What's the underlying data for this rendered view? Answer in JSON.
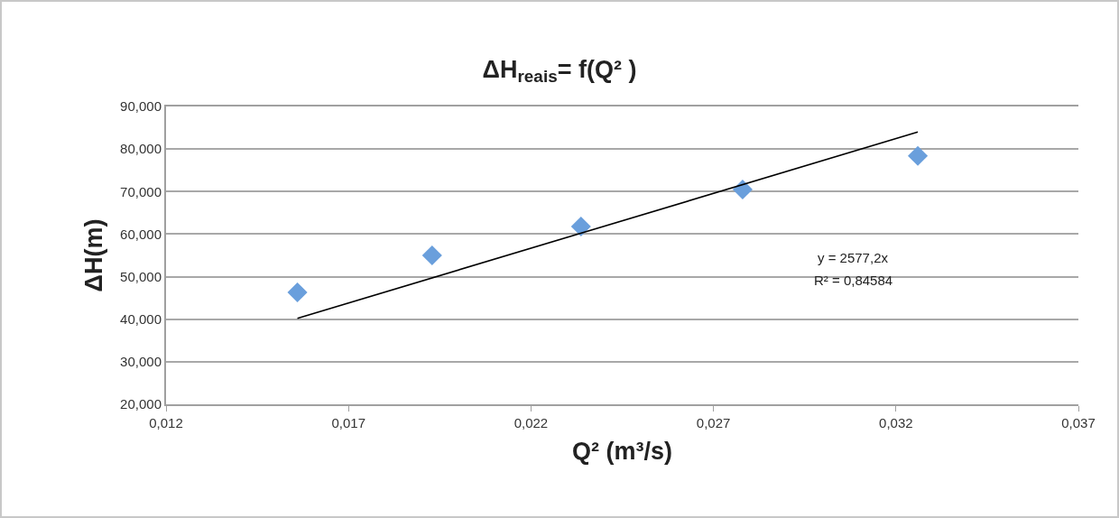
{
  "chart_data": {
    "type": "scatter",
    "title": "ΔH$_{reais}$= f(Q² )",
    "xlabel": "Q² (m³/s)",
    "ylabel": "ΔH(m)",
    "annotations": [
      "y = 2577,2x",
      "R² = 0,84584"
    ],
    "series": [
      {
        "color": "#6a9fdc",
        "marker": "diamond",
        "x": [
          0.0156,
          0.01929,
          0.02337,
          0.0278,
          0.0326
        ],
        "values": [
          46.3,
          55.0,
          61.8,
          70.5,
          78.4
        ]
      },
      {
        "type": "line",
        "color": "#000000",
        "marker": "none",
        "line_style": "solid",
        "x": [
          0.0156,
          0.0326
        ],
        "values": [
          40.2,
          84.0
        ]
      }
    ],
    "xlim": [
      0.012,
      0.037
    ],
    "xticks": [
      {
        "value": 0.012,
        "label": "0,012"
      },
      {
        "value": 0.017,
        "label": "0,017"
      },
      {
        "value": 0.022,
        "label": "0,022"
      },
      {
        "value": 0.027,
        "label": "0,027"
      },
      {
        "value": 0.032,
        "label": "0,032"
      },
      {
        "value": 0.037,
        "label": "0,037"
      }
    ],
    "ylim": [
      20,
      90
    ],
    "yticks": [
      {
        "value": 20,
        "label": "20,000"
      },
      {
        "value": 30,
        "label": "30,000"
      },
      {
        "value": 40,
        "label": "40,000"
      },
      {
        "value": 50,
        "label": "50,000"
      },
      {
        "value": 60,
        "label": "60,000"
      },
      {
        "value": 70,
        "label": "70,000"
      },
      {
        "value": 80,
        "label": "80,000"
      },
      {
        "value": 90,
        "label": "90,000"
      }
    ],
    "grid": "y"
  }
}
